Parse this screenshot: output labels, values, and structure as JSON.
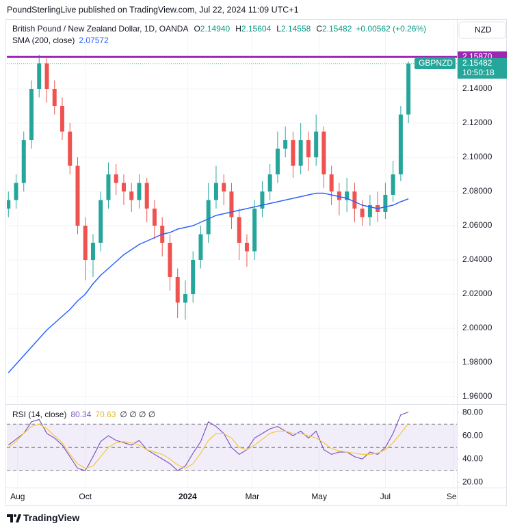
{
  "header": {
    "published": "PoundSterlingLive published on TradingView.com, Jul 22, 2024 11:09 UTC+1",
    "currency": "NZD",
    "footer": "TradingView"
  },
  "chart_data": [
    {
      "type": "candlestick",
      "title": "British Pound / New Zealand Dollar, 1D, OANDA",
      "ohlc": [
        {
          "key": "O",
          "label": "2.14940"
        },
        {
          "key": "H",
          "label": "2.15604"
        },
        {
          "key": "L",
          "label": "2.14558"
        },
        {
          "key": "C",
          "label": "2.15482"
        }
      ],
      "change": "+0.00562 (+0.26%)",
      "up_color": "#26a69a",
      "down_color": "#ef5350",
      "x": [
        0,
        1,
        2,
        3,
        4,
        5,
        6,
        7,
        8,
        9,
        10,
        11,
        12,
        13,
        14,
        15,
        16,
        17,
        18,
        19,
        20,
        21,
        22,
        23,
        24,
        25,
        26,
        27,
        28,
        29,
        30,
        31,
        32,
        33,
        34,
        35,
        36,
        37,
        38,
        39,
        40,
        41,
        42,
        43,
        44,
        45,
        46,
        47,
        48,
        49,
        50,
        51,
        52
      ],
      "open": [
        2.07,
        2.075,
        2.085,
        2.11,
        2.14,
        2.155,
        2.14,
        2.13,
        2.115,
        2.095,
        2.06,
        2.04,
        2.05,
        2.075,
        2.09,
        2.085,
        2.08,
        2.075,
        2.085,
        2.07,
        2.06,
        2.05,
        2.03,
        2.015,
        2.02,
        2.04,
        2.055,
        2.075,
        2.085,
        2.08,
        2.065,
        2.05,
        2.045,
        2.07,
        2.08,
        2.09,
        2.105,
        2.11,
        2.095,
        2.11,
        2.1,
        2.115,
        2.09,
        2.08,
        2.075,
        2.08,
        2.07,
        2.065,
        2.072,
        2.068,
        2.078,
        2.09,
        2.125
      ],
      "high": [
        2.08,
        2.09,
        2.115,
        2.145,
        2.16,
        2.158,
        2.145,
        2.135,
        2.12,
        2.1,
        2.065,
        2.055,
        2.08,
        2.097,
        2.096,
        2.09,
        2.085,
        2.09,
        2.088,
        2.075,
        2.065,
        2.055,
        2.035,
        2.028,
        2.045,
        2.06,
        2.085,
        2.095,
        2.09,
        2.085,
        2.07,
        2.055,
        2.075,
        2.086,
        2.096,
        2.115,
        2.118,
        2.115,
        2.12,
        2.115,
        2.125,
        2.118,
        2.095,
        2.085,
        2.088,
        2.085,
        2.075,
        2.078,
        2.08,
        2.085,
        2.098,
        2.13,
        2.15604
      ],
      "low": [
        2.065,
        2.07,
        2.08,
        2.105,
        2.135,
        2.132,
        2.125,
        2.11,
        2.09,
        2.055,
        2.028,
        2.03,
        2.045,
        2.07,
        2.078,
        2.072,
        2.068,
        2.07,
        2.062,
        2.052,
        2.042,
        2.022,
        2.006,
        2.005,
        2.015,
        2.035,
        2.05,
        2.07,
        2.072,
        2.058,
        2.04,
        2.036,
        2.04,
        2.065,
        2.075,
        2.085,
        2.1,
        2.088,
        2.09,
        2.092,
        2.095,
        2.082,
        2.072,
        2.066,
        2.068,
        2.062,
        2.06,
        2.06,
        2.062,
        2.064,
        2.074,
        2.086,
        2.12
      ],
      "close": [
        2.075,
        2.085,
        2.11,
        2.14,
        2.155,
        2.14,
        2.13,
        2.115,
        2.095,
        2.06,
        2.04,
        2.05,
        2.075,
        2.09,
        2.085,
        2.08,
        2.075,
        2.085,
        2.07,
        2.06,
        2.05,
        2.03,
        2.015,
        2.02,
        2.04,
        2.055,
        2.075,
        2.085,
        2.08,
        2.065,
        2.05,
        2.045,
        2.07,
        2.08,
        2.09,
        2.105,
        2.11,
        2.095,
        2.11,
        2.1,
        2.115,
        2.09,
        2.08,
        2.075,
        2.08,
        2.07,
        2.065,
        2.072,
        2.068,
        2.078,
        2.09,
        2.125,
        2.15482
      ],
      "series": [
        {
          "name": "SMA (200, close)",
          "color": "#2962ff",
          "value_label": "2.07572",
          "values": [
            1.974,
            1.979,
            1.984,
            1.989,
            1.994,
            1.999,
            2.003,
            2.007,
            2.011,
            2.016,
            2.02,
            2.026,
            2.031,
            2.035,
            2.039,
            2.043,
            2.046,
            2.049,
            2.051,
            2.053,
            2.055,
            2.056,
            2.058,
            2.059,
            2.06,
            2.062,
            2.064,
            2.066,
            2.067,
            2.068,
            2.069,
            2.07,
            2.071,
            2.072,
            2.073,
            2.074,
            2.075,
            2.076,
            2.077,
            2.078,
            2.079,
            2.079,
            2.078,
            2.077,
            2.076,
            2.074,
            2.072,
            2.071,
            2.07,
            2.071,
            2.072,
            2.074,
            2.07572
          ]
        }
      ],
      "high_line": {
        "value": 2.1587,
        "label": "2.15870",
        "color": "#9c27b0"
      },
      "last": {
        "symbol": "GBPNZD",
        "label": "2.15482",
        "countdown": "10:50:18"
      },
      "ylim": [
        1.956,
        2.18
      ],
      "yticks": [
        {
          "value": 2.14,
          "label": "2.14000"
        },
        {
          "value": 2.12,
          "label": "2.12000"
        },
        {
          "value": 2.1,
          "label": "2.10000"
        },
        {
          "value": 2.08,
          "label": "2.08000"
        },
        {
          "value": 2.06,
          "label": "2.06000"
        },
        {
          "value": 2.04,
          "label": "2.04000"
        },
        {
          "value": 2.02,
          "label": "2.02000"
        },
        {
          "value": 2.0,
          "label": "2.00000"
        },
        {
          "value": 1.98,
          "label": "1.98000"
        },
        {
          "value": 1.96,
          "label": "1.96000"
        }
      ],
      "xlim": [
        -0.2,
        58.3
      ],
      "xticks": [
        {
          "value": 1.2,
          "label": "Aug"
        },
        {
          "value": 10,
          "label": "Oct"
        },
        {
          "value": 23.3,
          "label": "2024"
        },
        {
          "value": 31.7,
          "label": "Mar"
        },
        {
          "value": 40.4,
          "label": "May"
        },
        {
          "value": 49,
          "label": "Jul"
        },
        {
          "value": 57.9,
          "label": "Sep"
        }
      ],
      "grid": true
    },
    {
      "type": "line",
      "title": "RSI (14, close)",
      "extra": "∅ ∅ ∅ ∅",
      "x": [
        0,
        1,
        2,
        3,
        4,
        5,
        6,
        7,
        8,
        9,
        10,
        11,
        12,
        13,
        14,
        15,
        16,
        17,
        18,
        19,
        20,
        21,
        22,
        23,
        24,
        25,
        26,
        27,
        28,
        29,
        30,
        31,
        32,
        33,
        34,
        35,
        36,
        37,
        38,
        39,
        40,
        41,
        42,
        43,
        44,
        45,
        46,
        47,
        48,
        49,
        50,
        51,
        52
      ],
      "series": [
        {
          "color": "#7e57c2",
          "value_label": "80.34",
          "values": [
            52,
            57,
            62,
            72,
            74,
            62,
            58,
            52,
            42,
            32,
            30,
            42,
            55,
            60,
            56,
            54,
            52,
            56,
            48,
            44,
            40,
            36,
            30,
            34,
            45,
            55,
            72,
            68,
            62,
            50,
            44,
            48,
            58,
            62,
            66,
            68,
            64,
            60,
            64,
            58,
            64,
            48,
            44,
            46,
            46,
            42,
            40,
            46,
            44,
            50,
            62,
            78,
            80.34
          ]
        },
        {
          "color": "#f5c836",
          "value_label": "70.63",
          "values": [
            50,
            55,
            62,
            68,
            70,
            66,
            60,
            54,
            44,
            36,
            32,
            34,
            42,
            50,
            54,
            55,
            54,
            52,
            48,
            46,
            44,
            40,
            35,
            32,
            36,
            45,
            56,
            62,
            62,
            58,
            50,
            48,
            52,
            57,
            62,
            64,
            64,
            62,
            62,
            60,
            58,
            54,
            49,
            47,
            46,
            45,
            44,
            44,
            45,
            48,
            54,
            62,
            70.63
          ]
        }
      ],
      "levels": [
        70,
        50,
        30
      ],
      "band": [
        30,
        70
      ],
      "band_color": "#7e57c2",
      "ylim": [
        16,
        86
      ],
      "yticks": [
        {
          "value": 80,
          "label": "80.00"
        },
        {
          "value": 60,
          "label": "60.00"
        },
        {
          "value": 40,
          "label": "40.00"
        },
        {
          "value": 20,
          "label": "20.00"
        }
      ],
      "xlim": [
        -0.2,
        58.3
      ]
    }
  ]
}
